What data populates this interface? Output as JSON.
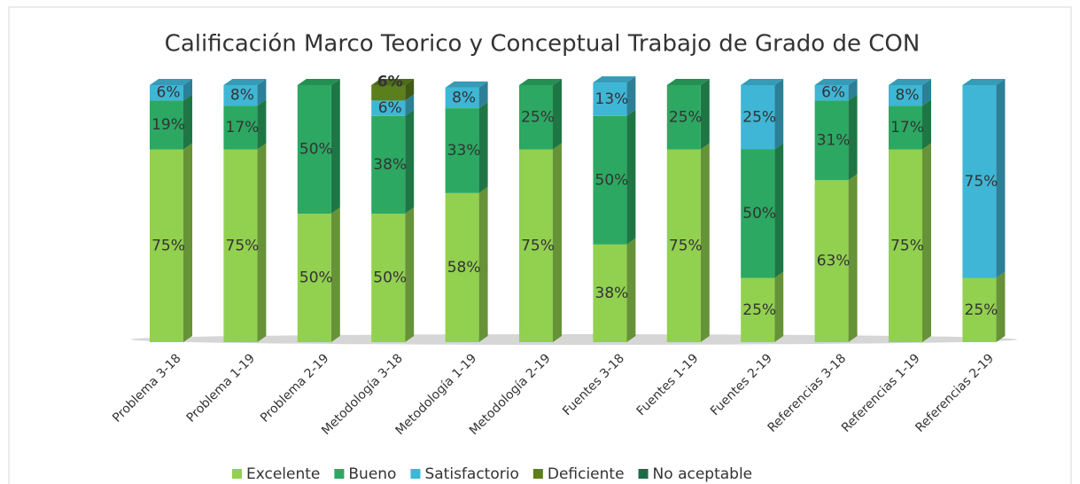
{
  "chart_data": {
    "type": "stacked_bar",
    "title": "Calificación Marco Teorico y Conceptual Trabajo de Grado de CON",
    "categories": [
      "Problema 3-18",
      "Problema 1-19",
      "Problema 2-19",
      "Metodología 3-18",
      "Metodología 1-19",
      "Metodología 2-19",
      "Fuentes 3-18",
      "Fuentes 1-19",
      "Fuentes 2-19",
      "Referencias 3-18",
      "Referencias 1-19",
      "Referencias 2-19"
    ],
    "ylim": [
      0,
      100
    ],
    "legend": "bottom",
    "series": [
      {
        "name": "Excelente",
        "color": "#92d050",
        "values": [
          75,
          75,
          50,
          50,
          58,
          75,
          38,
          75,
          25,
          63,
          75,
          25
        ],
        "value_labels": [
          "75%",
          "75%",
          "50%",
          "50%",
          "58%",
          "75%",
          "38%",
          "75%",
          "25%",
          "63%",
          "75%",
          "25%"
        ]
      },
      {
        "name": "Bueno",
        "color": "#2ca862",
        "values": [
          19,
          17,
          50,
          38,
          33,
          25,
          50,
          25,
          50,
          31,
          17,
          0
        ],
        "value_labels": [
          "19%",
          "17%",
          "50%",
          "38%",
          "33%",
          "25%",
          "50%",
          "25%",
          "50%",
          "31%",
          "17%",
          null
        ]
      },
      {
        "name": "Satisfactorio",
        "color": "#3fb6d6",
        "values": [
          6,
          8,
          0,
          6,
          8,
          0,
          13,
          0,
          25,
          6,
          8,
          75
        ],
        "value_labels": [
          "6%",
          "8%",
          null,
          "6%",
          "8%",
          null,
          "13%",
          null,
          "25%",
          "6%",
          "8%",
          "75%"
        ]
      },
      {
        "name": "Deficiente",
        "color": "#5b7f1c",
        "values": [
          0,
          0,
          0,
          6,
          0,
          0,
          0,
          0,
          0,
          0,
          0,
          0
        ],
        "value_labels": [
          null,
          null,
          null,
          "6%",
          null,
          null,
          null,
          null,
          null,
          null,
          null,
          null
        ]
      },
      {
        "name": "No aceptable",
        "color": "#1d6b45",
        "values": [
          0,
          0,
          0,
          0,
          0,
          0,
          0,
          0,
          0,
          0,
          0,
          0
        ],
        "value_labels": [
          null,
          null,
          null,
          null,
          null,
          null,
          null,
          null,
          null,
          null,
          null,
          null
        ]
      }
    ]
  }
}
